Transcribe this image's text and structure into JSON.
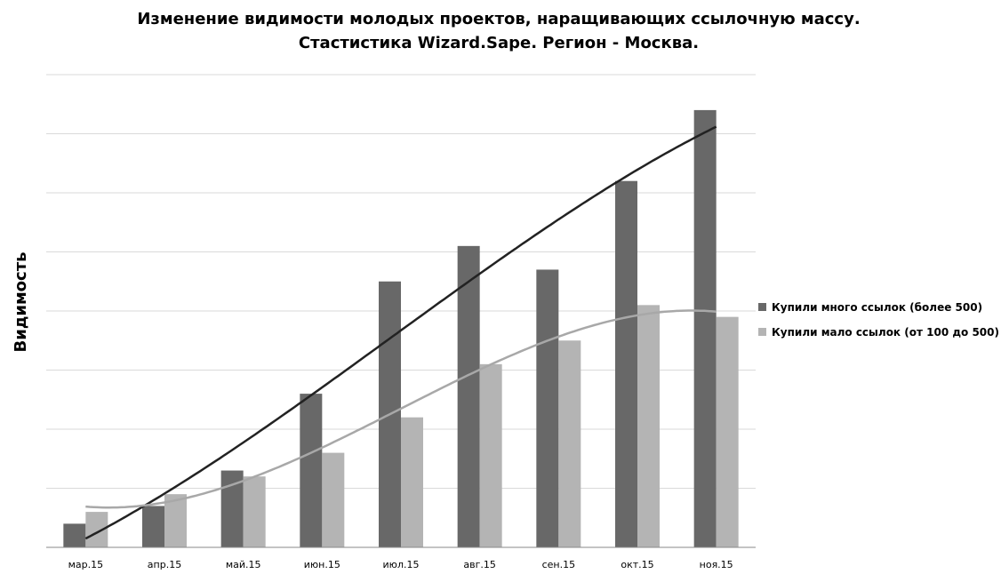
{
  "chart_data": {
    "type": "bar",
    "title": [
      "Изменение видимости молодых проектов, наращивающих ссылочную массу.",
      "Стастистика Wizard.Sape. Регион - Москва."
    ],
    "ylabel": "Видимость",
    "xlabel": "",
    "categories": [
      "мар.15",
      "апр.15",
      "май.15",
      "июн.15",
      "июл.15",
      "авг.15",
      "сен.15",
      "окт.15",
      "ноя.15"
    ],
    "ylim": [
      0,
      80
    ],
    "grid": true,
    "legend_position": "right",
    "series": [
      {
        "name": "Купили много ссылок (более 500)",
        "color": "#686868",
        "values": [
          4,
          7,
          13,
          26,
          45,
          51,
          47,
          62,
          74
        ],
        "trend_color": "#222222"
      },
      {
        "name": "Купили мало ссылок (от 100 до 500)",
        "color": "#b4b4b4",
        "values": [
          6,
          9,
          12,
          16,
          22,
          31,
          35,
          41,
          39
        ],
        "trend_color": "#a8a8a8"
      }
    ]
  }
}
